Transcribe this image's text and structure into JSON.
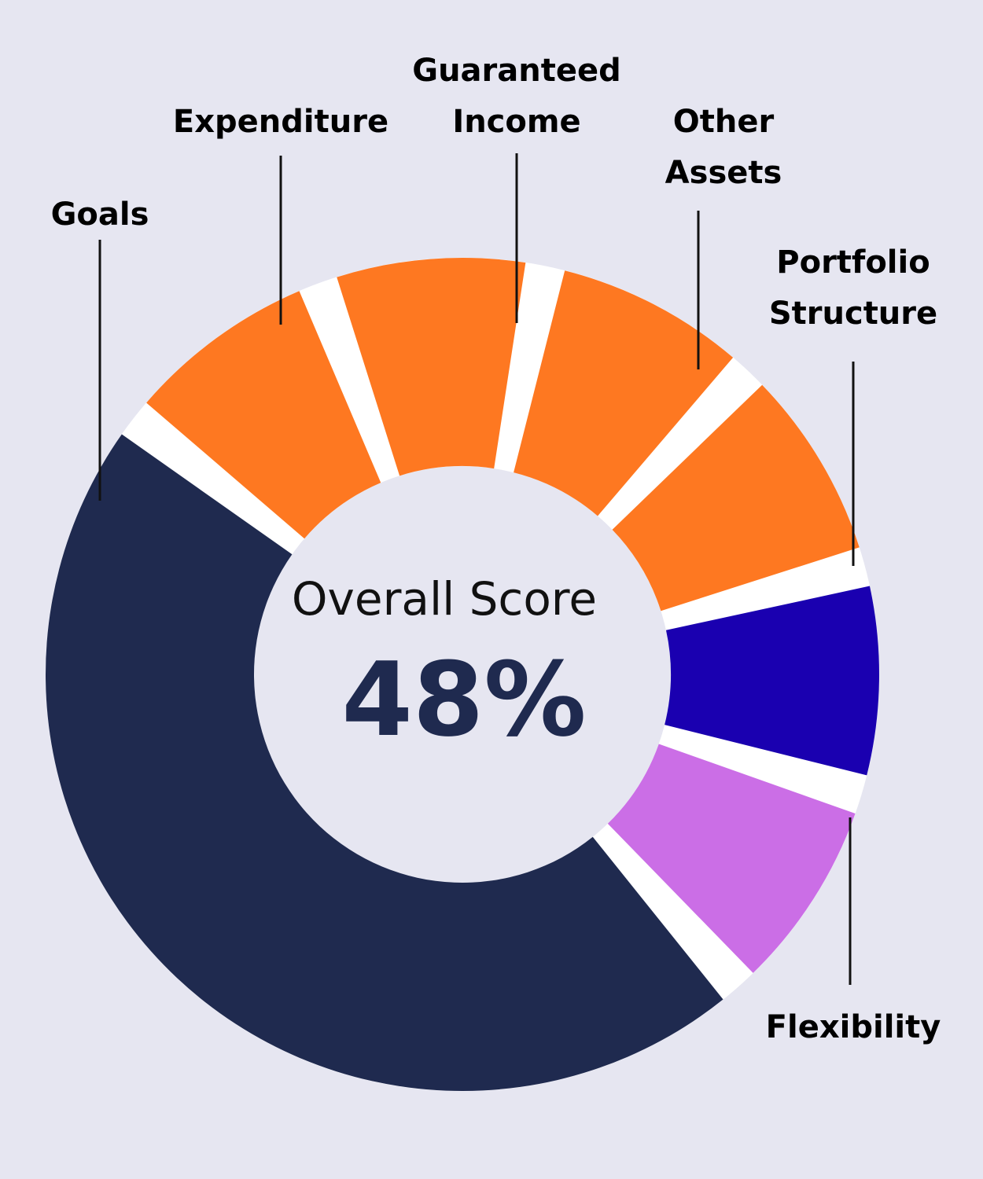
{
  "chart_data": {
    "type": "donut",
    "center": {
      "caption": "Overall Score",
      "value": "48%"
    },
    "segments": [
      {
        "name": "Portfolio Structure",
        "label_lines": [
          "Portfolio",
          "Structure"
        ],
        "value": 9,
        "color": "#1a00b0"
      },
      {
        "name": "Flexibility",
        "label_lines": [
          "Flexibility"
        ],
        "value": 9,
        "color": "#cb6ee6"
      },
      {
        "name": "Overall Score",
        "label_lines": [],
        "value": 48,
        "color": "#1f2a4f"
      },
      {
        "name": "Goals",
        "label_lines": [
          "Goals"
        ],
        "value": 9,
        "color": "#fe7821"
      },
      {
        "name": "Expenditure",
        "label_lines": [
          "Expenditure"
        ],
        "value": 9,
        "color": "#fe7821"
      },
      {
        "name": "Guaranteed Income",
        "label_lines": [
          "Guaranteed",
          "Income"
        ],
        "value": 9,
        "color": "#fe7821"
      },
      {
        "name": "Other Assets",
        "label_lines": [
          "Other",
          "Assets"
        ],
        "value": 9,
        "color": "#fe7821"
      }
    ],
    "gap_color": "#ffffff",
    "background": "#e6e6f1"
  }
}
